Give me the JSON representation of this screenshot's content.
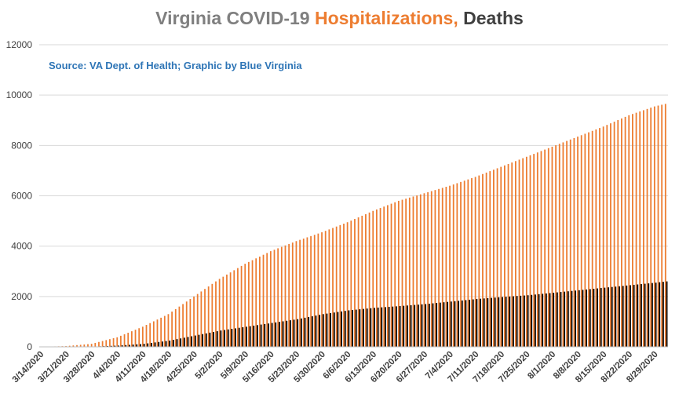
{
  "colors": {
    "title_text": "#7f7f7f",
    "hospitalizations": "#ed7d31",
    "deaths": "#000000",
    "deaths_title": "#404040",
    "subtitle": "#2e75b6",
    "gridline": "#d9d9d9",
    "tick_label": "#404040"
  },
  "chart_data": {
    "type": "bar",
    "title_parts": [
      "Virginia COVID-19 ",
      "Hospitalizations, ",
      "Deaths"
    ],
    "subtitle": "Source: VA Dept. of Health; Graphic by Blue Virginia",
    "xlabel": "",
    "ylabel": "",
    "ylim": [
      0,
      12000
    ],
    "yticks": [
      0,
      2000,
      4000,
      6000,
      8000,
      10000,
      12000
    ],
    "grid": true,
    "x_tick_labels": [
      "3/14/2020",
      "3/21/2020",
      "3/28/2020",
      "4/4/2020",
      "4/11/2020",
      "4/18/2020",
      "4/25/2020",
      "5/2/2020",
      "5/9/2020",
      "5/16/2020",
      "5/23/2020",
      "5/30/2020",
      "6/6/2020",
      "6/13/2020",
      "6/20/2020",
      "6/27/2020",
      "7/4/2020",
      "7/11/2020",
      "7/18/2020",
      "7/25/2020",
      "8/1/2020",
      "8/8/2020",
      "8/15/2020",
      "8/22/2020",
      "8/29/2020"
    ],
    "x_start_date": "2020-03-14",
    "x_end_date": "2020-09-01",
    "series": [
      {
        "name": "Hospitalizations",
        "anchors": [
          [
            "2020-03-14",
            0
          ],
          [
            "2020-03-21",
            30
          ],
          [
            "2020-03-28",
            120
          ],
          [
            "2020-04-04",
            380
          ],
          [
            "2020-04-11",
            800
          ],
          [
            "2020-04-18",
            1300
          ],
          [
            "2020-04-25",
            2000
          ],
          [
            "2020-05-02",
            2700
          ],
          [
            "2020-05-09",
            3300
          ],
          [
            "2020-05-16",
            3800
          ],
          [
            "2020-05-23",
            4200
          ],
          [
            "2020-05-30",
            4550
          ],
          [
            "2020-06-06",
            4950
          ],
          [
            "2020-06-13",
            5400
          ],
          [
            "2020-06-20",
            5800
          ],
          [
            "2020-06-27",
            6100
          ],
          [
            "2020-07-04",
            6400
          ],
          [
            "2020-07-11",
            6750
          ],
          [
            "2020-07-18",
            7150
          ],
          [
            "2020-07-25",
            7550
          ],
          [
            "2020-08-01",
            7950
          ],
          [
            "2020-08-08",
            8350
          ],
          [
            "2020-08-15",
            8750
          ],
          [
            "2020-08-22",
            9200
          ],
          [
            "2020-08-29",
            9550
          ],
          [
            "2020-09-01",
            9650
          ]
        ]
      },
      {
        "name": "Deaths",
        "anchors": [
          [
            "2020-03-14",
            0
          ],
          [
            "2020-03-21",
            0
          ],
          [
            "2020-03-28",
            10
          ],
          [
            "2020-04-04",
            50
          ],
          [
            "2020-04-11",
            120
          ],
          [
            "2020-04-18",
            250
          ],
          [
            "2020-04-25",
            450
          ],
          [
            "2020-05-02",
            650
          ],
          [
            "2020-05-09",
            800
          ],
          [
            "2020-05-16",
            950
          ],
          [
            "2020-05-23",
            1100
          ],
          [
            "2020-05-30",
            1300
          ],
          [
            "2020-06-06",
            1450
          ],
          [
            "2020-06-13",
            1550
          ],
          [
            "2020-06-20",
            1620
          ],
          [
            "2020-06-27",
            1700
          ],
          [
            "2020-07-04",
            1800
          ],
          [
            "2020-07-11",
            1900
          ],
          [
            "2020-07-18",
            1980
          ],
          [
            "2020-07-25",
            2050
          ],
          [
            "2020-08-01",
            2150
          ],
          [
            "2020-08-08",
            2250
          ],
          [
            "2020-08-15",
            2350
          ],
          [
            "2020-08-22",
            2450
          ],
          [
            "2020-08-29",
            2550
          ],
          [
            "2020-09-01",
            2600
          ]
        ]
      }
    ]
  }
}
